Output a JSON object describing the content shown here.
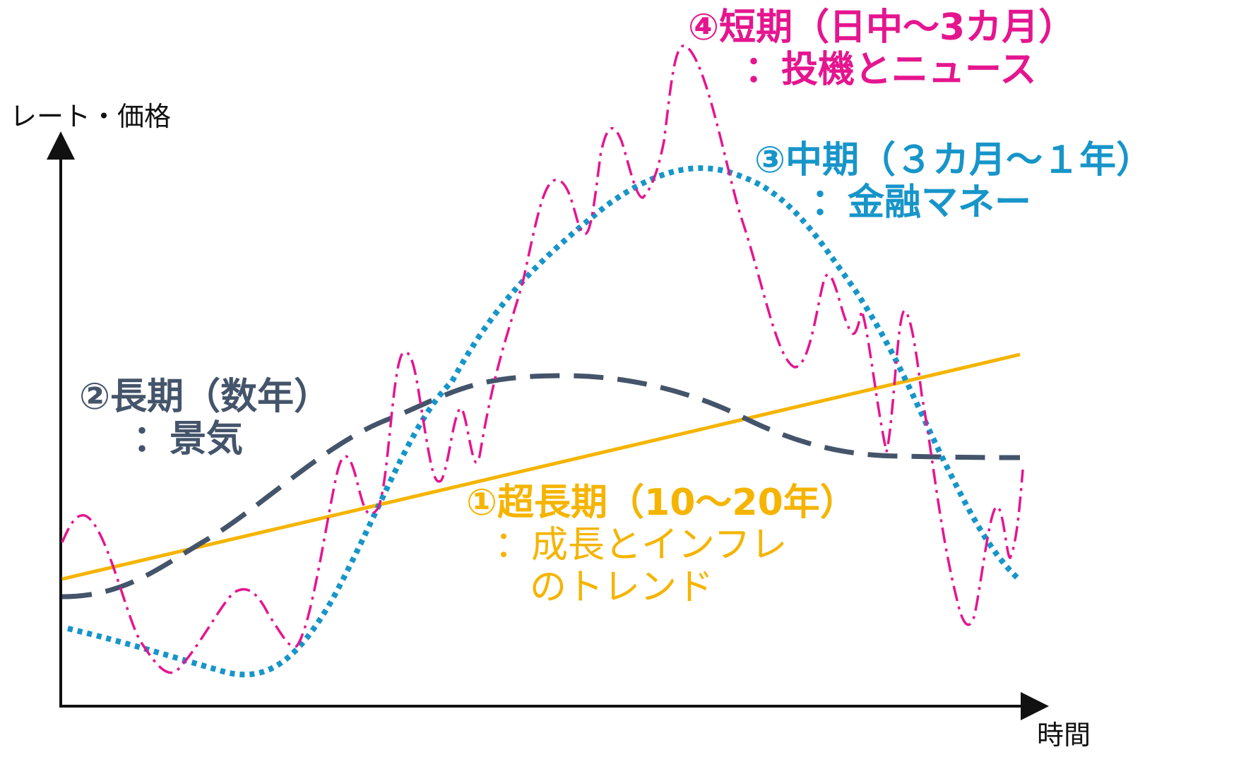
{
  "axes": {
    "y_label": "レート・価格",
    "x_label": "時間"
  },
  "series": {
    "ultra_long": {
      "line1": "①超長期（10～20年）",
      "line2": "：成長とインフレ",
      "line3": "のトレンド",
      "color": "#f5b400",
      "style": "solid"
    },
    "long": {
      "line1": "②長期（数年）",
      "line2": "：景気",
      "color": "#44546a",
      "style": "dashed"
    },
    "mid": {
      "line1": "③中期（３カ月～１年）",
      "line2": "：金融マネー",
      "color": "#1795c9",
      "style": "dotted"
    },
    "short": {
      "line1": "④短期（日中～3カ月）",
      "line2": "：投機とニュース",
      "color": "#e5158f",
      "style": "dash-dot"
    }
  }
}
